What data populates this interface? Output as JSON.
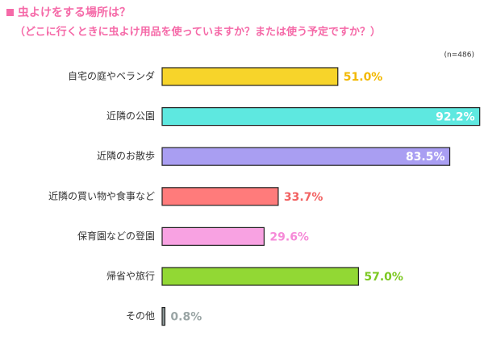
{
  "chart_data": {
    "type": "hbar",
    "title": "虫よけをする場所は？",
    "subtitle": "（どこに行くときに虫よけ用品を使っていますか？または使う予定ですか？）",
    "note": "(n=486)",
    "categories": [
      "自宅の庭やベランダ",
      "近隣の公園",
      "近隣のお散歩",
      "近隣の買い物や食事など",
      "保育園などの登園",
      "帰省や旅行",
      "その他"
    ],
    "values": [
      51.0,
      92.2,
      83.5,
      33.7,
      29.6,
      57.0,
      0.8
    ],
    "value_labels": [
      "51.0%",
      "92.2%",
      "83.5%",
      "33.7%",
      "29.6%",
      "57.0%",
      "0.8%"
    ],
    "colors": [
      "#f7d42a",
      "#5ee8e0",
      "#a99ef2",
      "#ff7b7b",
      "#f8a2e2",
      "#92d834",
      "#8f9a9a"
    ],
    "label_colors": [
      "#f2b800",
      "#ffffff",
      "#ffffff",
      "#f26262",
      "#f68ad8",
      "#7cc822",
      "#9aa5a5"
    ],
    "title_marker_color": "#f56aa8"
  }
}
